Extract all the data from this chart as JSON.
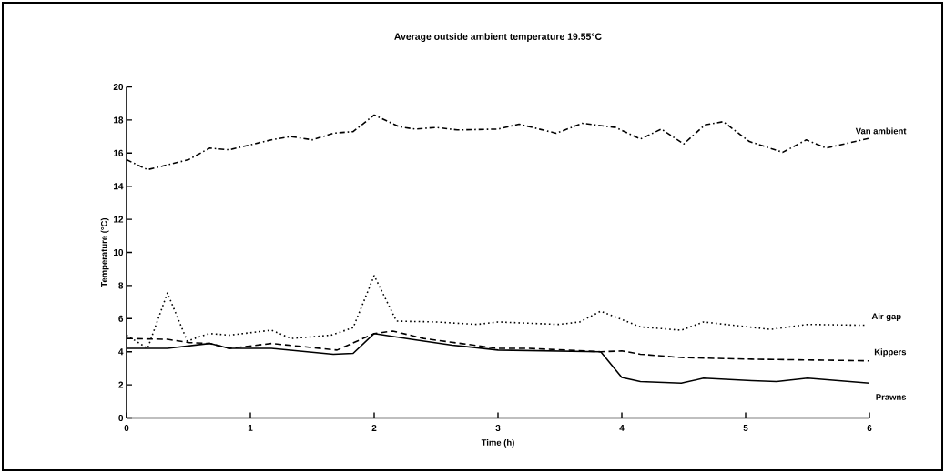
{
  "chart_data": {
    "type": "line",
    "title": "Average outside ambient temperature 19.55°C",
    "xlabel": "Time (h)",
    "ylabel": "Temperature (°C)",
    "xlim": [
      0,
      6
    ],
    "ylim": [
      0,
      20
    ],
    "xticks": [
      0,
      1,
      2,
      3,
      4,
      5,
      6
    ],
    "yticks": [
      0,
      2,
      4,
      6,
      8,
      10,
      12,
      14,
      16,
      18,
      20
    ],
    "grid": false,
    "legend": false,
    "marker": "none",
    "series": [
      {
        "name": "Van ambient",
        "color": "#000000",
        "line_style": "dashdot",
        "x": [
          0,
          0.17,
          0.5,
          0.67,
          0.83,
          1.17,
          1.33,
          1.5,
          1.67,
          1.83,
          2.0,
          2.2,
          2.33,
          2.5,
          2.67,
          3.0,
          3.17,
          3.47,
          3.68,
          3.95,
          4.15,
          4.32,
          4.5,
          4.67,
          4.82,
          5.03,
          5.3,
          5.49,
          5.65,
          6.0
        ],
        "values": [
          15.6,
          15.0,
          15.6,
          16.3,
          16.2,
          16.8,
          17.0,
          16.8,
          17.2,
          17.3,
          18.3,
          17.6,
          17.45,
          17.55,
          17.4,
          17.45,
          17.75,
          17.2,
          17.8,
          17.55,
          16.85,
          17.45,
          16.55,
          17.7,
          17.9,
          16.7,
          16.05,
          16.8,
          16.3,
          16.9
        ]
      },
      {
        "name": "Air gap",
        "color": "#000000",
        "line_style": "dotted",
        "x": [
          0,
          0.17,
          0.33,
          0.49,
          0.67,
          0.83,
          1.17,
          1.33,
          1.65,
          1.83,
          2.0,
          2.18,
          2.5,
          2.83,
          3.0,
          3.49,
          3.66,
          3.83,
          4.15,
          4.48,
          4.66,
          5.2,
          5.5,
          5.96
        ],
        "values": [
          5.0,
          4.2,
          7.55,
          4.65,
          5.1,
          5.0,
          5.3,
          4.8,
          5.0,
          5.45,
          8.6,
          5.85,
          5.8,
          5.65,
          5.8,
          5.65,
          5.8,
          6.45,
          5.5,
          5.3,
          5.8,
          5.35,
          5.65,
          5.6
        ]
      },
      {
        "name": "Kippers",
        "color": "#000000",
        "line_style": "dashed",
        "x": [
          0,
          0.33,
          0.51,
          0.67,
          0.83,
          1.17,
          1.7,
          2.0,
          2.15,
          2.4,
          3.0,
          3.25,
          3.83,
          4.0,
          4.15,
          4.48,
          5.05,
          6.0
        ],
        "values": [
          4.8,
          4.75,
          4.55,
          4.5,
          4.2,
          4.5,
          4.1,
          5.1,
          5.25,
          4.8,
          4.2,
          4.2,
          4.0,
          4.05,
          3.85,
          3.65,
          3.55,
          3.45
        ]
      },
      {
        "name": "Prawns",
        "color": "#000000",
        "line_style": "solid",
        "x": [
          0,
          0.33,
          0.67,
          0.83,
          1.17,
          1.67,
          1.83,
          2.0,
          2.3,
          2.63,
          3.0,
          3.83,
          4.0,
          4.15,
          4.48,
          4.66,
          5.05,
          5.25,
          5.5,
          6.0
        ],
        "values": [
          4.2,
          4.2,
          4.5,
          4.2,
          4.2,
          3.85,
          3.9,
          5.1,
          4.75,
          4.4,
          4.1,
          4.0,
          2.45,
          2.2,
          2.1,
          2.4,
          2.25,
          2.2,
          2.4,
          2.1
        ]
      }
    ]
  }
}
